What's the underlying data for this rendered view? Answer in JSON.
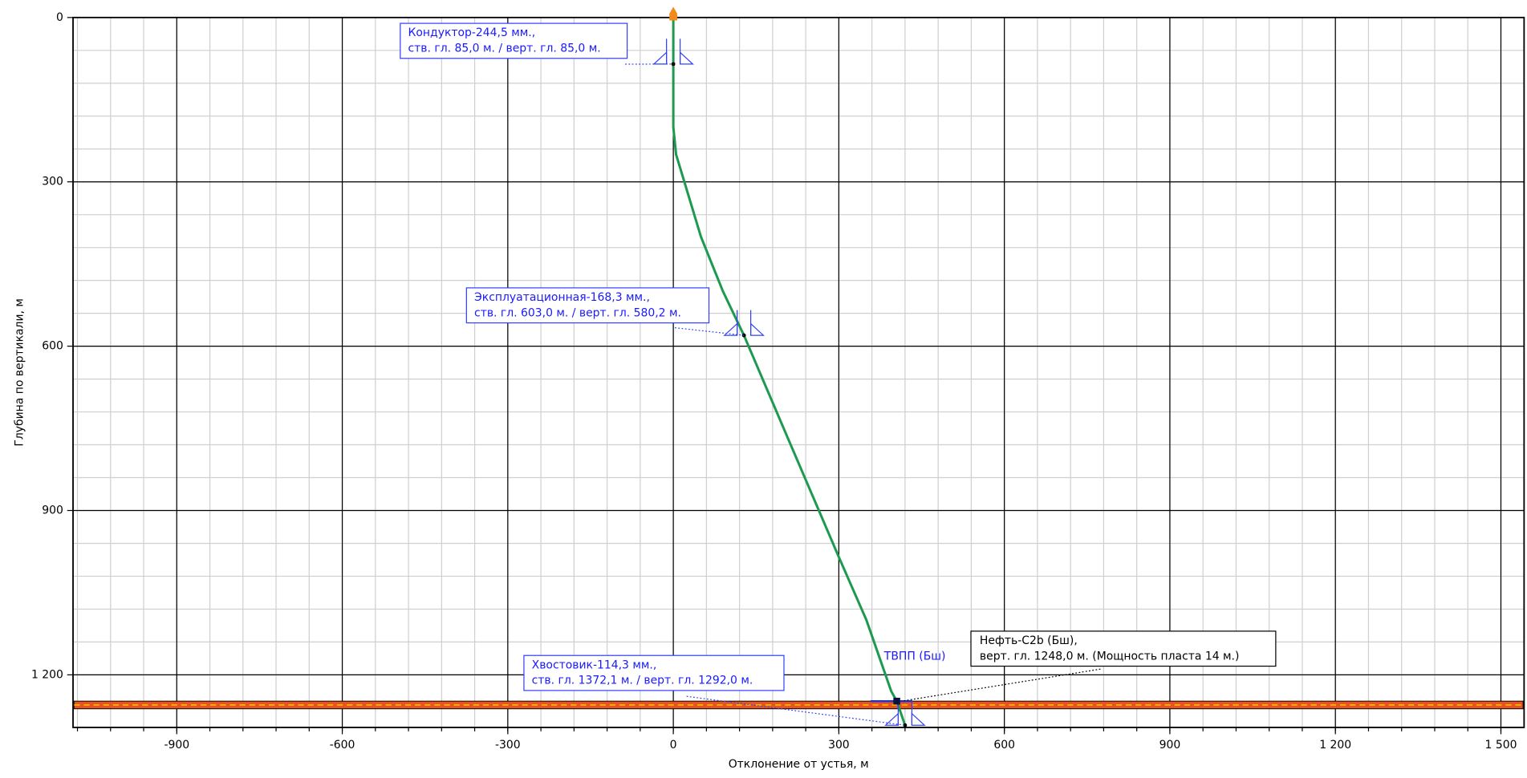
{
  "chart_data": {
    "type": "line",
    "x_label": "Отклонение от устья, м",
    "y_label": "Глубина по вертикали, м",
    "x": [
      0,
      0,
      0,
      5,
      20,
      50,
      90,
      128,
      200,
      300,
      350,
      395,
      405,
      420
    ],
    "values": [
      0,
      85,
      200,
      250,
      300,
      400,
      500,
      580.2,
      750,
      985,
      1100,
      1230,
      1248,
      1292
    ],
    "color": "#1e9a50",
    "xlim": [
      -1088,
      1542
    ],
    "ylim": [
      0,
      1296
    ],
    "y_inverted": true,
    "xticks": [
      -900,
      -600,
      -300,
      0,
      300,
      600,
      900,
      {
        "value": 1200,
        "label": "1 200"
      },
      {
        "value": 1500,
        "label": "1 500"
      }
    ],
    "yticks": [
      0,
      300,
      600,
      900,
      {
        "value": 1200,
        "label": "1 200"
      }
    ],
    "grid": true,
    "minor_grid_divisions": 5,
    "casings": [
      {
        "lines": [
          "Кондуктор-244,5 мм.,",
          "ств. гл. 85,0 м. / верт. гл. 85,0 м."
        ],
        "x": 0,
        "y": 85
      },
      {
        "lines": [
          "Эксплуатационная-168,3 мм.,",
          "ств. гл. 603,0 м. / верт. гл. 580,2 м."
        ],
        "x": 128,
        "y": 580.2
      },
      {
        "lines": [
          "Хвостовик-114,3 мм.,",
          "ств. гл. 1372,1 м. / верт. гл. 1292,0 м."
        ],
        "x": 420,
        "y": 1292
      }
    ],
    "target": {
      "label": "ТВПП (Бш)",
      "x": 405,
      "y": 1248
    },
    "formation": {
      "lines": [
        "Нефть-C2b (Бш),",
        "верт. гл. 1248,0 м. (Мощность пласта 14 м.)"
      ],
      "depth": 1248,
      "thickness": 14
    }
  }
}
